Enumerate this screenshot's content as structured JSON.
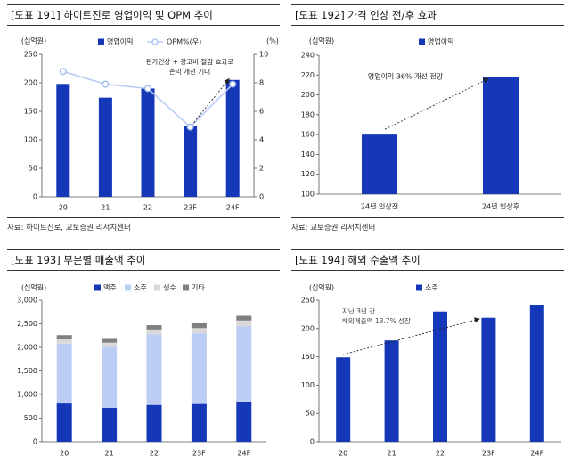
{
  "panels": [
    {
      "title": "[도표 191] 하이트진로 영업이익 및 OPM 추이",
      "source": "자료: 하이트진로, 교보증권 리서치센터"
    },
    {
      "title": "[도표 192] 가격 인상 전/후 효과",
      "source": "자료: 교보증권 리서치센터"
    },
    {
      "title": "[도표 193] 부문별 매출액 추이",
      "source": ""
    },
    {
      "title": "[도표 194] 해외 수출액 추이",
      "source": ""
    }
  ],
  "chart_data": [
    {
      "type": "bar",
      "title": "[도표 191] 하이트진로 영업이익 및 OPM 추이",
      "categories": [
        "20",
        "21",
        "22",
        "23F",
        "24F"
      ],
      "ylabel": "(십억원)",
      "y2label": "(%)",
      "ylim": [
        0,
        250
      ],
      "y2lim": [
        0,
        10
      ],
      "yticks": [
        "0",
        "50",
        "100",
        "150",
        "200",
        "250"
      ],
      "y2ticks": [
        "0",
        "2",
        "4",
        "6",
        "8",
        "10"
      ],
      "series": [
        {
          "name": "영업이익",
          "type": "bar",
          "axis": "left",
          "color": "#1438b8",
          "values": [
            198,
            174,
            190,
            124,
            205
          ]
        },
        {
          "name": "OPM%(우)",
          "type": "line",
          "axis": "right",
          "color": "#b9cdf3",
          "values": [
            8.8,
            7.9,
            7.6,
            4.9,
            7.9
          ]
        }
      ],
      "annotations": [
        "판가인상 + 광고비 절감 효과로",
        "손익 개선 기대"
      ],
      "legend": "top"
    },
    {
      "type": "bar",
      "title": "[도표 192] 가격 인상 전/후 효과",
      "categories": [
        "24년 인상전",
        "24년 인상후"
      ],
      "ylabel": "(십억원)",
      "ylim": [
        100,
        240
      ],
      "yticks": [
        "100",
        "120",
        "140",
        "160",
        "180",
        "200",
        "220",
        "240"
      ],
      "series": [
        {
          "name": "영업이익",
          "color": "#1438b8",
          "values": [
            160,
            218
          ]
        }
      ],
      "annotations": [
        "영업이익 36% 개선 전망"
      ],
      "legend": "top-left"
    },
    {
      "type": "bar",
      "stacked": true,
      "title": "[도표 193] 부문별 매출액 추이",
      "categories": [
        "20",
        "21",
        "22",
        "23F",
        "24F"
      ],
      "ylabel": "(십억원)",
      "ylim": [
        0,
        3000
      ],
      "yticks": [
        "0",
        "500",
        "1,000",
        "1,500",
        "2,000",
        "2,500",
        "3,000"
      ],
      "series": [
        {
          "name": "맥주",
          "color": "#1438b8",
          "values": [
            810,
            720,
            780,
            800,
            850
          ]
        },
        {
          "name": "소주",
          "color": "#bccdf6",
          "values": [
            1270,
            1290,
            1500,
            1500,
            1600
          ]
        },
        {
          "name": "생수",
          "color": "#d9d9d9",
          "values": [
            90,
            90,
            100,
            110,
            120
          ]
        },
        {
          "name": "기타",
          "color": "#7f7f7f",
          "values": [
            90,
            80,
            90,
            100,
            100
          ]
        }
      ],
      "legend": "top"
    },
    {
      "type": "bar",
      "title": "[도표 194] 해외 수출액 추이",
      "categories": [
        "20",
        "21",
        "22",
        "23F",
        "24F"
      ],
      "ylabel": "(십억원)",
      "ylim": [
        0,
        250
      ],
      "yticks": [
        "0",
        "50",
        "100",
        "150",
        "200",
        "250"
      ],
      "series": [
        {
          "name": "소주",
          "color": "#1438b8",
          "values": [
            149,
            179,
            230,
            219,
            241
          ]
        }
      ],
      "annotations": [
        "지난 3년 간",
        "해외매출액 13.7% 성장"
      ],
      "legend": "top"
    }
  ]
}
